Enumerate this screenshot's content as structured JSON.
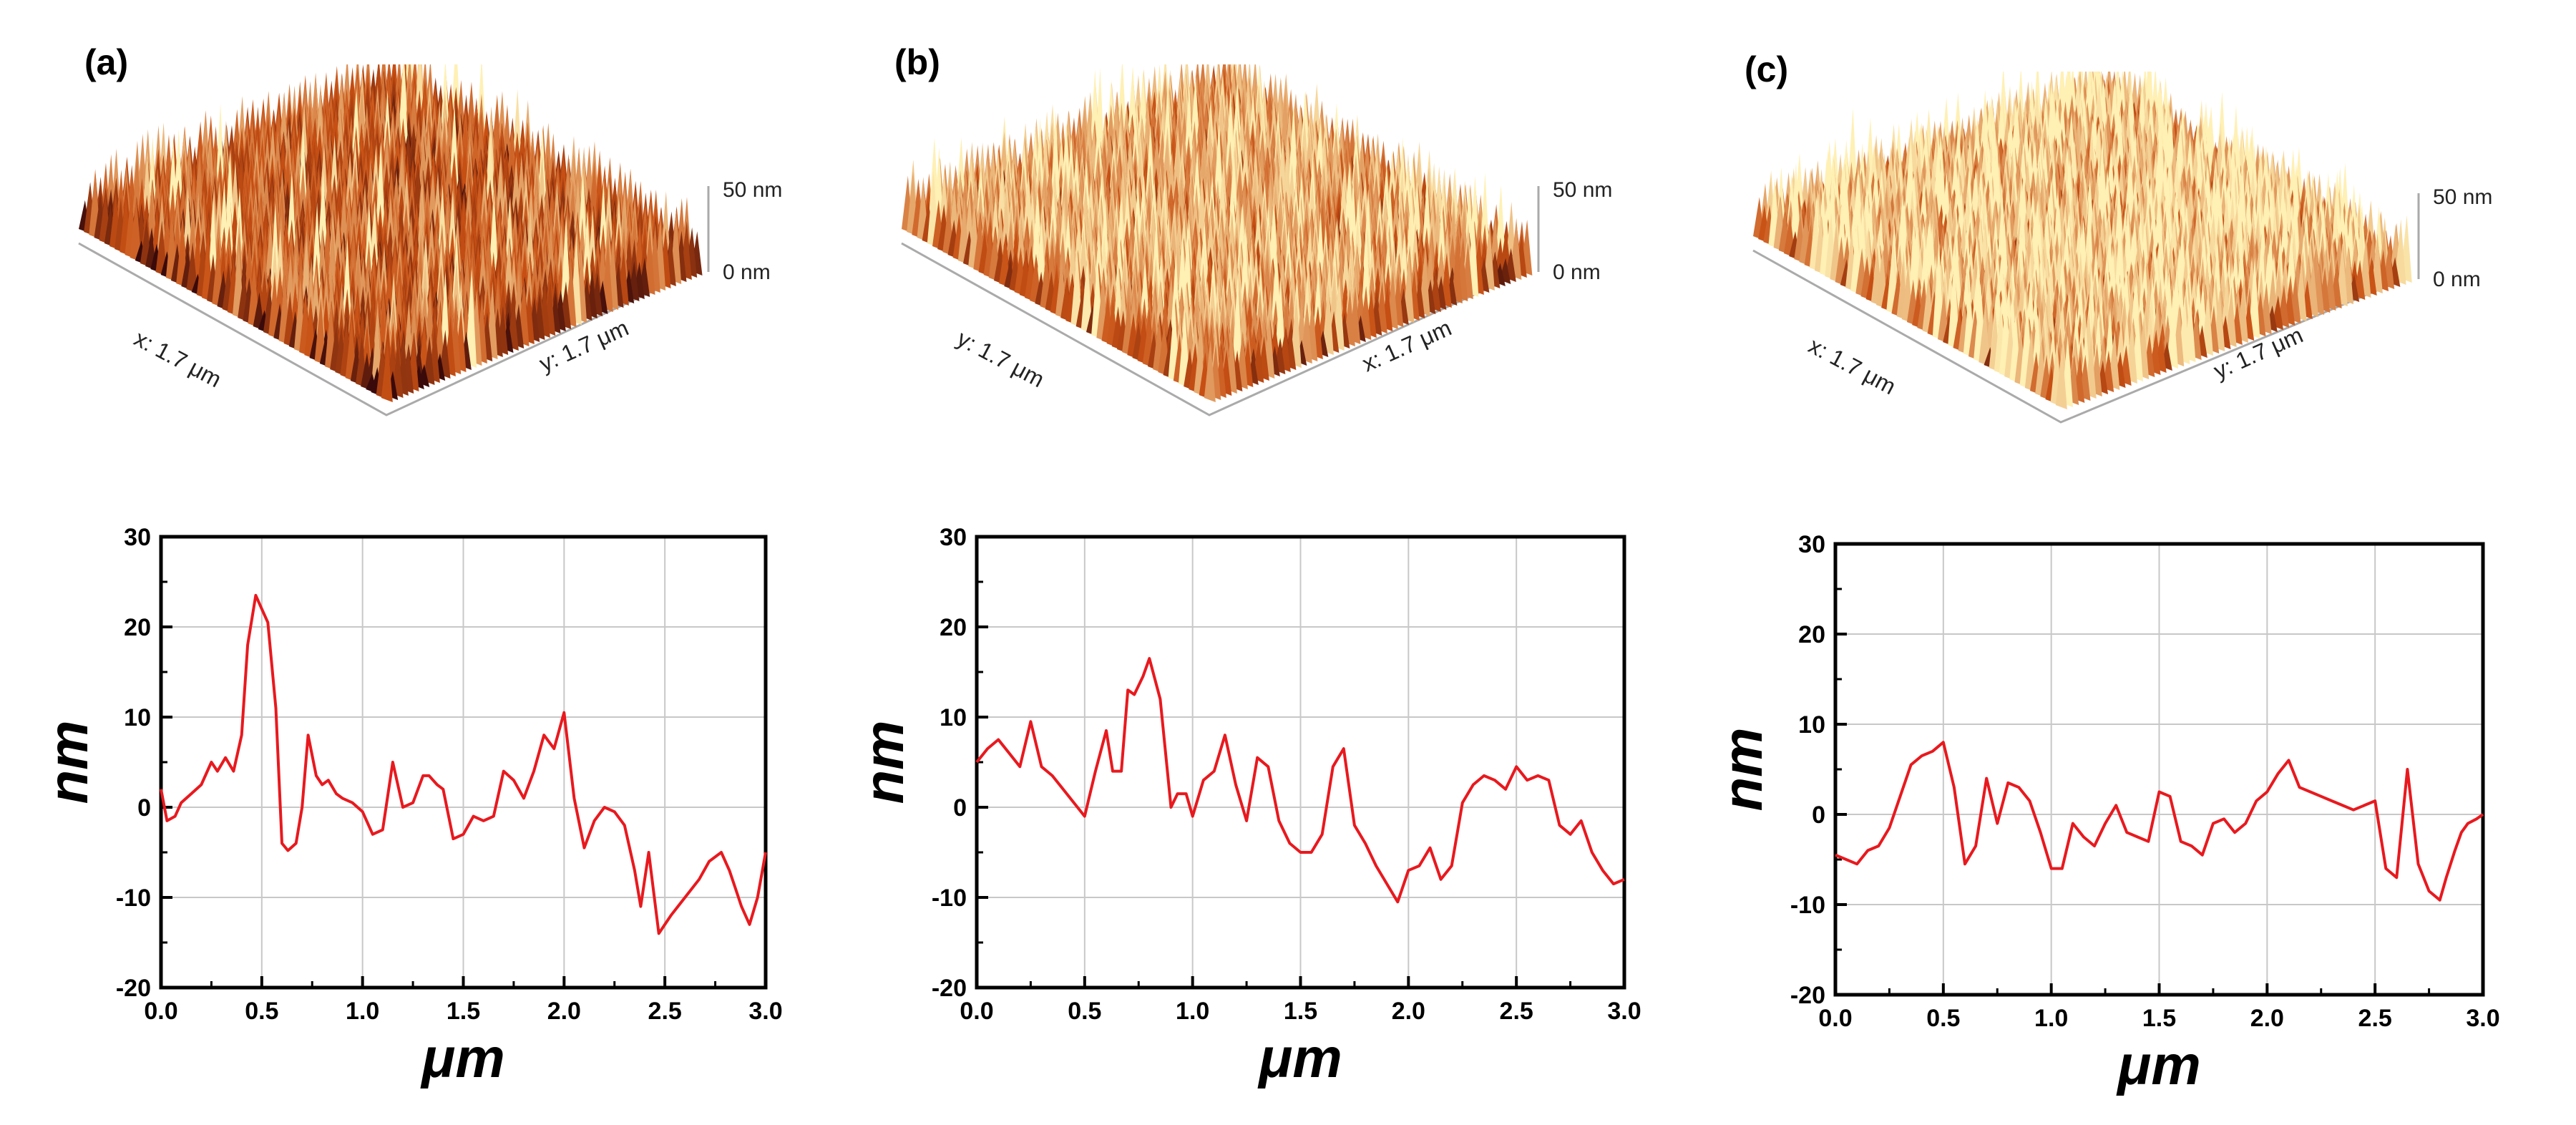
{
  "colors": {
    "trace": "#e8191e",
    "grid": "#c8c8c8",
    "axis": "#000000",
    "surface_low": "#3a0a0a",
    "surface_mid": "#c85014",
    "surface_high": "#fff0b4"
  },
  "panels": [
    {
      "label": "(a)",
      "afm": {
        "x_label": "x: 1.7 μm",
        "y_label": "y: 1.7 μm",
        "z_top": "50 nm",
        "z_bottom": "0 nm",
        "tone": "dark"
      }
    },
    {
      "label": "(b)",
      "afm": {
        "x_label": "y: 1.7 μm",
        "y_label": "x: 1.7 μm",
        "z_top": "50 nm",
        "z_bottom": "0 nm",
        "tone": "medium"
      }
    },
    {
      "label": "(c)",
      "afm": {
        "x_label": "x: 1.7 μm",
        "y_label": "y: 1.7 μm",
        "z_top": "50 nm",
        "z_bottom": "0 nm",
        "tone": "light"
      }
    }
  ],
  "chart_data": [
    {
      "type": "line",
      "panel": "(a)",
      "xlabel": "μm",
      "ylabel": "nm",
      "xlim": [
        0,
        3.0
      ],
      "ylim": [
        -20,
        30
      ],
      "xticks": [
        "0.0",
        "0.5",
        "1.0",
        "1.5",
        "2.0",
        "2.5",
        "3.0"
      ],
      "yticks": [
        "-20",
        "-10",
        "0",
        "10",
        "20",
        "30"
      ],
      "grid": true,
      "series": [
        {
          "x": [
            0.0,
            0.03,
            0.07,
            0.1,
            0.15,
            0.2,
            0.25,
            0.28,
            0.32,
            0.36,
            0.4,
            0.43,
            0.47,
            0.5,
            0.53,
            0.57,
            0.6,
            0.63,
            0.67,
            0.7,
            0.73,
            0.77,
            0.8,
            0.83,
            0.87,
            0.9,
            0.95,
            1.0,
            1.05,
            1.1,
            1.15,
            1.2,
            1.25,
            1.3,
            1.33,
            1.37,
            1.4,
            1.45,
            1.5,
            1.55,
            1.6,
            1.65,
            1.7,
            1.75,
            1.8,
            1.85,
            1.9,
            1.95,
            2.0,
            2.05,
            2.1,
            2.15,
            2.2,
            2.25,
            2.3,
            2.35,
            2.38,
            2.42,
            2.47,
            2.53,
            2.6,
            2.67,
            2.72,
            2.78,
            2.82,
            2.85,
            2.88,
            2.92,
            2.96,
            3.0
          ],
          "y": [
            2.0,
            -1.5,
            -1.0,
            0.5,
            1.5,
            2.5,
            5.0,
            4.0,
            5.5,
            4.0,
            8.0,
            18.0,
            23.5,
            22.0,
            20.5,
            11.0,
            -4.0,
            -4.8,
            -4.0,
            0.0,
            8.0,
            3.5,
            2.5,
            3.0,
            1.5,
            1.0,
            0.5,
            -0.5,
            -3.0,
            -2.5,
            5.0,
            0.0,
            0.5,
            3.5,
            3.5,
            2.5,
            2.0,
            -3.5,
            -3.0,
            -1.0,
            -1.5,
            -1.0,
            4.0,
            3.0,
            1.0,
            4.0,
            8.0,
            6.5,
            10.5,
            1.0,
            -4.5,
            -1.5,
            0.0,
            -0.5,
            -2.0,
            -7.0,
            -11.0,
            -5.0,
            -14.0,
            -12.0,
            -10.0,
            -8.0,
            -6.0,
            -5.0,
            -7.0,
            -9.0,
            -11.0,
            -13.0,
            -10.0,
            -5.0
          ]
        }
      ]
    },
    {
      "type": "line",
      "panel": "(b)",
      "xlabel": "μm",
      "ylabel": "nm",
      "xlim": [
        0,
        3.0
      ],
      "ylim": [
        -20,
        30
      ],
      "xticks": [
        "0.0",
        "0.5",
        "1.0",
        "1.5",
        "2.0",
        "2.5",
        "3.0"
      ],
      "yticks": [
        "-20",
        "-10",
        "0",
        "10",
        "20",
        "30"
      ],
      "grid": true,
      "series": [
        {
          "x": [
            0.0,
            0.05,
            0.1,
            0.15,
            0.2,
            0.25,
            0.3,
            0.35,
            0.4,
            0.45,
            0.5,
            0.55,
            0.6,
            0.63,
            0.67,
            0.7,
            0.73,
            0.77,
            0.8,
            0.85,
            0.9,
            0.93,
            0.97,
            1.0,
            1.05,
            1.1,
            1.15,
            1.2,
            1.25,
            1.3,
            1.35,
            1.4,
            1.45,
            1.5,
            1.55,
            1.6,
            1.65,
            1.7,
            1.75,
            1.8,
            1.85,
            1.9,
            1.95,
            2.0,
            2.05,
            2.1,
            2.15,
            2.2,
            2.25,
            2.3,
            2.35,
            2.4,
            2.45,
            2.5,
            2.55,
            2.6,
            2.65,
            2.7,
            2.75,
            2.8,
            2.85,
            2.9,
            2.95,
            3.0
          ],
          "y": [
            5.0,
            6.5,
            7.5,
            6.0,
            4.5,
            9.5,
            4.5,
            3.5,
            2.0,
            0.5,
            -1.0,
            4.0,
            8.5,
            4.0,
            4.0,
            13.0,
            12.5,
            14.5,
            16.5,
            12.0,
            0.0,
            1.5,
            1.5,
            -1.0,
            3.0,
            4.0,
            8.0,
            2.5,
            -1.5,
            5.5,
            4.5,
            -1.5,
            -4.0,
            -5.0,
            -5.0,
            -3.0,
            4.5,
            6.5,
            -2.0,
            -4.0,
            -6.5,
            -8.5,
            -10.5,
            -7.0,
            -6.5,
            -4.5,
            -8.0,
            -6.5,
            0.5,
            2.5,
            3.5,
            3.0,
            2.0,
            4.5,
            3.0,
            3.5,
            3.0,
            -2.0,
            -3.0,
            -1.5,
            -5.0,
            -7.0,
            -8.5,
            -8.0
          ]
        }
      ]
    },
    {
      "type": "line",
      "panel": "(c)",
      "xlabel": "μm",
      "ylabel": "nm",
      "xlim": [
        0,
        3.0
      ],
      "ylim": [
        -20,
        30
      ],
      "xticks": [
        "0.0",
        "0.5",
        "1.0",
        "1.5",
        "2.0",
        "2.5",
        "3.0"
      ],
      "yticks": [
        "-20",
        "-10",
        "0",
        "10",
        "20",
        "30"
      ],
      "grid": true,
      "series": [
        {
          "x": [
            0.0,
            0.05,
            0.1,
            0.15,
            0.2,
            0.25,
            0.3,
            0.35,
            0.4,
            0.45,
            0.5,
            0.55,
            0.6,
            0.65,
            0.7,
            0.75,
            0.8,
            0.85,
            0.9,
            0.95,
            1.0,
            1.05,
            1.1,
            1.15,
            1.2,
            1.25,
            1.3,
            1.35,
            1.4,
            1.45,
            1.5,
            1.55,
            1.6,
            1.65,
            1.7,
            1.75,
            1.8,
            1.85,
            1.9,
            1.95,
            2.0,
            2.05,
            2.1,
            2.15,
            2.2,
            2.25,
            2.3,
            2.35,
            2.4,
            2.45,
            2.5,
            2.55,
            2.6,
            2.65,
            2.7,
            2.75,
            2.8,
            2.83,
            2.87,
            2.9,
            2.93,
            2.97,
            3.0
          ],
          "y": [
            -4.5,
            -5.0,
            -5.5,
            -4.0,
            -3.5,
            -1.5,
            2.0,
            5.5,
            6.5,
            7.0,
            8.0,
            3.0,
            -5.5,
            -3.5,
            4.0,
            -1.0,
            3.5,
            3.0,
            1.5,
            -2.0,
            -6.0,
            -6.0,
            -1.0,
            -2.5,
            -3.5,
            -1.0,
            1.0,
            -2.0,
            -2.5,
            -3.0,
            2.5,
            2.0,
            -3.0,
            -3.5,
            -4.5,
            -1.0,
            -0.5,
            -2.0,
            -1.0,
            1.5,
            2.5,
            4.5,
            6.0,
            3.0,
            2.5,
            2.0,
            1.5,
            1.0,
            0.5,
            1.0,
            1.5,
            -6.0,
            -7.0,
            5.0,
            -5.5,
            -8.5,
            -9.5,
            -7.0,
            -4.0,
            -2.0,
            -1.0,
            -0.5,
            0.0
          ]
        }
      ]
    }
  ]
}
